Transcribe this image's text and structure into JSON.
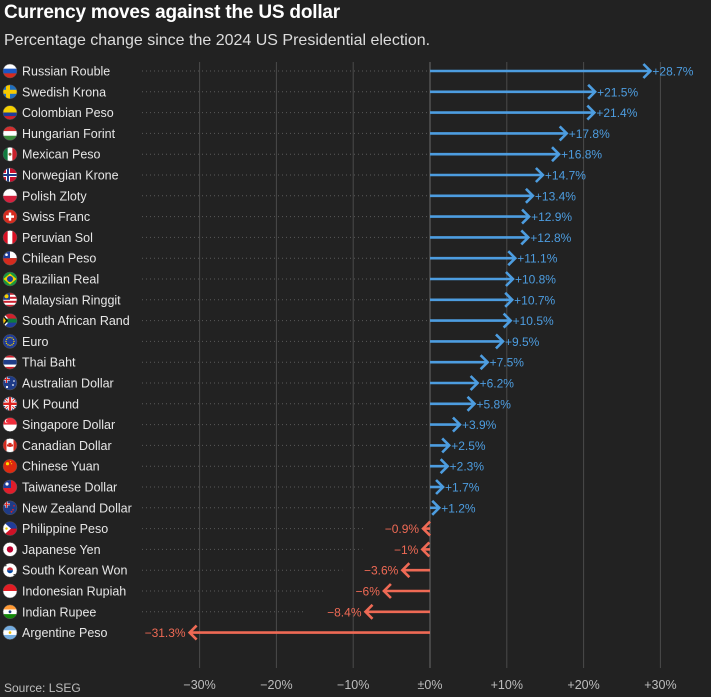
{
  "title": "Currency moves against the US dollar",
  "subtitle": "Percentage change since the 2024 US Presidential election.",
  "source": "Source: LSEG",
  "colors": {
    "positive": "#4d9de0",
    "negative": "#ef6a55",
    "grid": "#4a4a4a",
    "background": "#222222"
  },
  "chart_data": {
    "type": "bar",
    "title": "Currency moves against the US dollar",
    "subtitle": "Percentage change since the 2024 US Presidential election.",
    "xlabel": "",
    "ylabel": "",
    "xlim": [
      -35,
      35
    ],
    "ticks": [
      -30,
      -20,
      -10,
      0,
      10,
      20,
      30
    ],
    "tick_labels": [
      "−30%",
      "−20%",
      "−10%",
      "±0%",
      "+10%",
      "+20%",
      "+30%"
    ],
    "series": [
      {
        "name": "Percentage change",
        "unit": "%"
      }
    ],
    "categories": [
      "Russian Rouble",
      "Swedish Krona",
      "Colombian Peso",
      "Hungarian Forint",
      "Mexican Peso",
      "Norwegian Krone",
      "Polish Zloty",
      "Swiss Franc",
      "Peruvian Sol",
      "Chilean Peso",
      "Brazilian Real",
      "Malaysian Ringgit",
      "South African Rand",
      "Euro",
      "Thai Baht",
      "Australian Dollar",
      "UK Pound",
      "Singapore Dollar",
      "Canadian Dollar",
      "Chinese Yuan",
      "Taiwanese Dollar",
      "New Zealand Dollar",
      "Philippine Peso",
      "Japanese Yen",
      "South Korean Won",
      "Indonesian Rupiah",
      "Indian Rupee",
      "Argentine Peso"
    ],
    "values": [
      28.7,
      21.5,
      21.4,
      17.8,
      16.8,
      14.7,
      13.4,
      12.9,
      12.8,
      11.1,
      10.8,
      10.7,
      10.5,
      9.5,
      7.5,
      6.2,
      5.8,
      3.9,
      2.5,
      2.3,
      1.7,
      1.2,
      -0.9,
      -1,
      -3.6,
      -6,
      -8.4,
      -31.3
    ],
    "value_labels": [
      "+28.7%",
      "+21.5%",
      "+21.4%",
      "+17.8%",
      "+16.8%",
      "+14.7%",
      "+13.4%",
      "+12.9%",
      "+12.8%",
      "+11.1%",
      "+10.8%",
      "+10.7%",
      "+10.5%",
      "+9.5%",
      "+7.5%",
      "+6.2%",
      "+5.8%",
      "+3.9%",
      "+2.5%",
      "+2.3%",
      "+1.7%",
      "+1.2%",
      "−0.9%",
      "−1%",
      "−3.6%",
      "−6%",
      "−8.4%",
      "−31.3%"
    ],
    "flags": [
      "russia-flag-icon",
      "sweden-flag-icon",
      "colombia-flag-icon",
      "hungary-flag-icon",
      "mexico-flag-icon",
      "norway-flag-icon",
      "poland-flag-icon",
      "switzerland-flag-icon",
      "peru-flag-icon",
      "chile-flag-icon",
      "brazil-flag-icon",
      "malaysia-flag-icon",
      "south-africa-flag-icon",
      "eu-flag-icon",
      "thailand-flag-icon",
      "australia-flag-icon",
      "uk-flag-icon",
      "singapore-flag-icon",
      "canada-flag-icon",
      "china-flag-icon",
      "taiwan-flag-icon",
      "new-zealand-flag-icon",
      "philippines-flag-icon",
      "japan-flag-icon",
      "south-korea-flag-icon",
      "indonesia-flag-icon",
      "india-flag-icon",
      "argentina-flag-icon"
    ]
  }
}
